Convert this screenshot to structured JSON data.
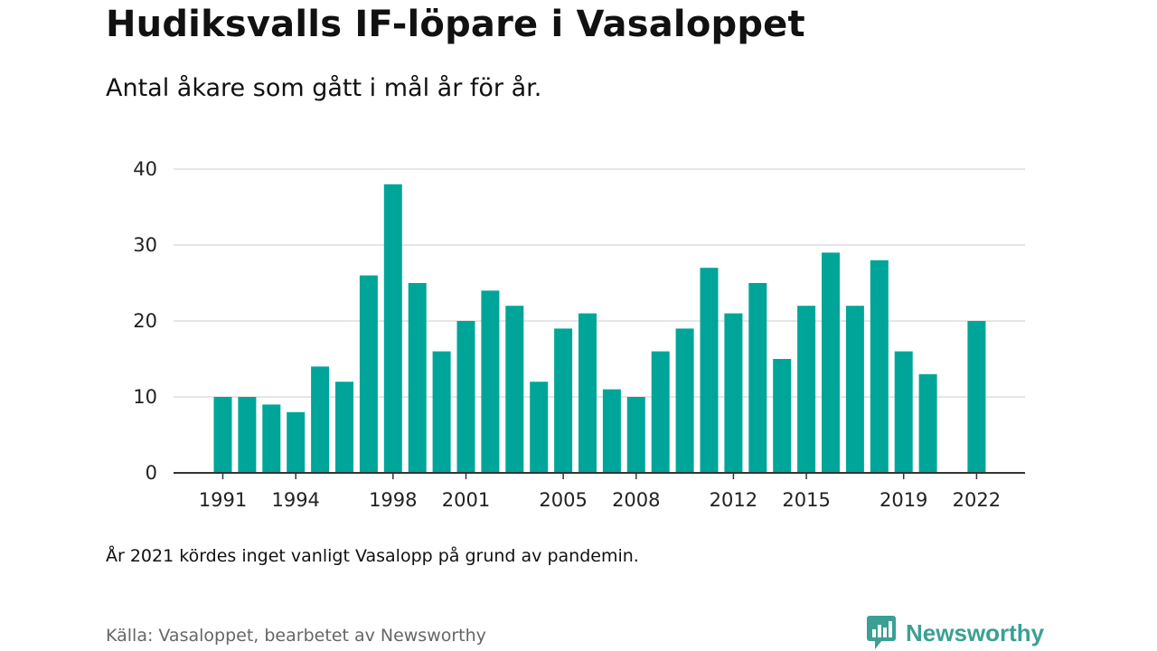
{
  "header": {
    "title": "Hudiksvalls IF-löpare i Vasaloppet",
    "subtitle": "Antal åkare som gått i mål år för år."
  },
  "footer": {
    "note": "År 2021 kördes inget vanligt Vasalopp på grund av pandemin.",
    "source": "Källa: Vasaloppet, bearbetet av Newsworthy",
    "brand": "Newsworthy"
  },
  "colors": {
    "bar": "#00a599",
    "grid": "#dddddd",
    "axis": "#333333",
    "brand": "#3aa093"
  },
  "chart_data": {
    "type": "bar",
    "title": "Hudiksvalls IF-löpare i Vasaloppet",
    "subtitle": "Antal åkare som gått i mål år för år.",
    "xlabel": "",
    "ylabel": "",
    "ylim": [
      0,
      40
    ],
    "yticks": [
      0,
      10,
      20,
      30,
      40
    ],
    "xticks": [
      1991,
      1994,
      1998,
      2001,
      2005,
      2008,
      2012,
      2015,
      2019,
      2022
    ],
    "grid": true,
    "x": [
      1991,
      1992,
      1993,
      1994,
      1995,
      1996,
      1997,
      1998,
      1999,
      2000,
      2001,
      2002,
      2003,
      2004,
      2005,
      2006,
      2007,
      2008,
      2009,
      2010,
      2011,
      2012,
      2013,
      2014,
      2015,
      2016,
      2017,
      2018,
      2019,
      2020,
      2021,
      2022
    ],
    "values": [
      10,
      10,
      9,
      8,
      14,
      12,
      26,
      38,
      25,
      16,
      20,
      24,
      22,
      12,
      19,
      21,
      11,
      10,
      16,
      19,
      27,
      21,
      25,
      15,
      22,
      29,
      22,
      28,
      16,
      13,
      null,
      20
    ]
  }
}
